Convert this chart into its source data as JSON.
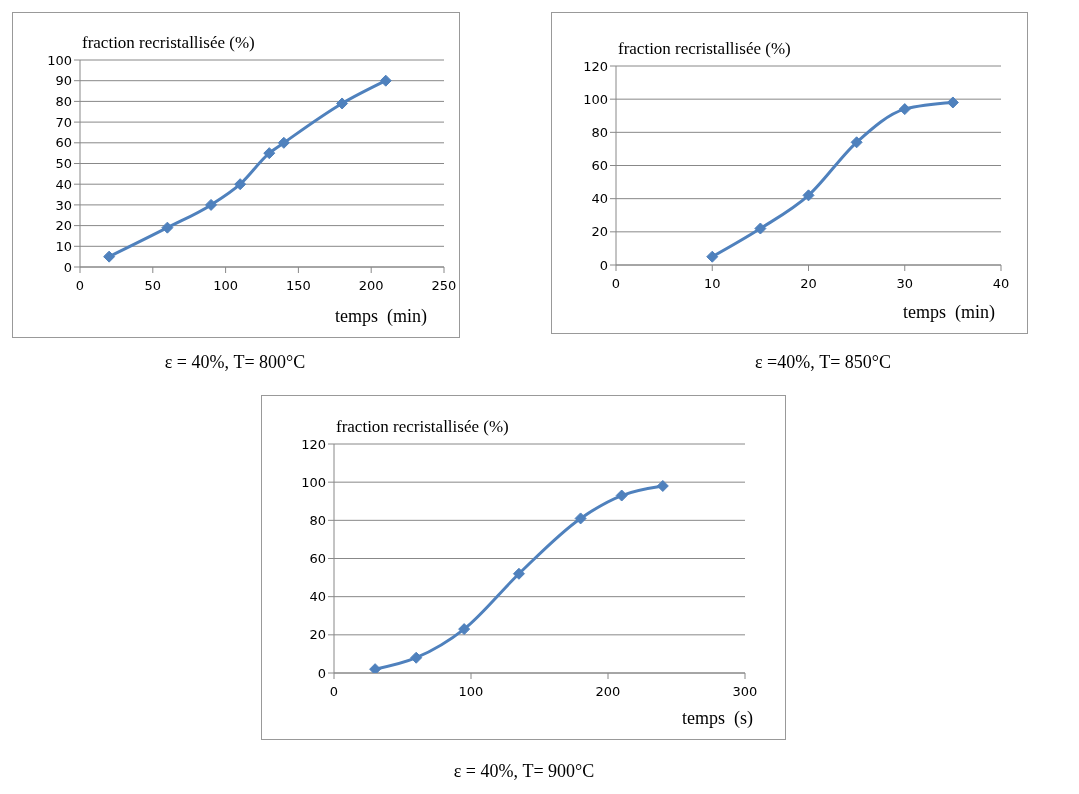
{
  "chart_data": [
    {
      "type": "line",
      "ylabel": "fraction recristallisée (%)",
      "xlabel": "temps  (min)",
      "x": [
        20,
        60,
        90,
        110,
        130,
        140,
        180,
        210
      ],
      "series": [
        {
          "color": "#4f81bd",
          "values": [
            5,
            19,
            30,
            40,
            55,
            60,
            79,
            90
          ]
        }
      ],
      "xlim": [
        0,
        250
      ],
      "xticks": [
        0,
        50,
        100,
        150,
        200,
        250
      ],
      "ylim": [
        0,
        100
      ],
      "yticks": [
        0,
        10,
        20,
        30,
        40,
        50,
        60,
        70,
        80,
        90,
        100
      ],
      "grid": "y",
      "marker": "diamond",
      "annotations": [
        "ε = 40%, T= 800°C"
      ]
    },
    {
      "type": "line",
      "ylabel": "fraction recristallisée (%)",
      "xlabel": "temps  (min)",
      "x": [
        10,
        15,
        20,
        25,
        30,
        35
      ],
      "series": [
        {
          "color": "#4f81bd",
          "values": [
            5,
            22,
            42,
            74,
            94,
            98
          ]
        }
      ],
      "xlim": [
        0,
        40
      ],
      "xticks": [
        0,
        10,
        20,
        30,
        40
      ],
      "ylim": [
        0,
        120
      ],
      "yticks": [
        0,
        20,
        40,
        60,
        80,
        100,
        120
      ],
      "grid": "y",
      "marker": "diamond",
      "annotations": [
        "ε =40%, T= 850°C"
      ]
    },
    {
      "type": "line",
      "ylabel": "fraction recristallisée (%)",
      "xlabel": "temps  (s)",
      "x": [
        30,
        60,
        95,
        135,
        180,
        210,
        240
      ],
      "series": [
        {
          "color": "#4f81bd",
          "values": [
            2,
            8,
            23,
            52,
            81,
            93,
            98
          ]
        }
      ],
      "xlim": [
        0,
        300
      ],
      "xticks": [
        0,
        100,
        200,
        300
      ],
      "ylim": [
        0,
        120
      ],
      "yticks": [
        0,
        20,
        40,
        60,
        80,
        100,
        120
      ],
      "grid": "y",
      "marker": "diamond",
      "annotations": [
        "ε = 40%, T= 900°C"
      ]
    }
  ]
}
